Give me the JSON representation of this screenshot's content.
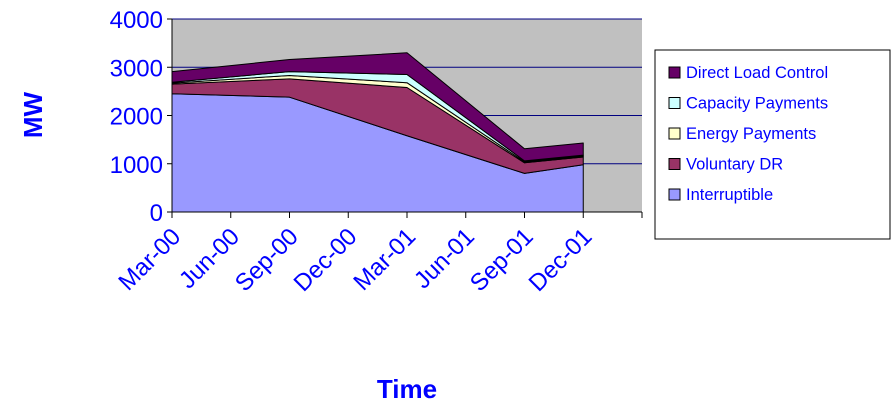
{
  "chart_data": {
    "type": "area",
    "stacked": true,
    "title": "",
    "xlabel": "Time",
    "ylabel": "MW",
    "ylim": [
      0,
      4000
    ],
    "yticks": [
      0,
      1000,
      2000,
      3000,
      4000
    ],
    "categories": [
      "Mar-00",
      "Jun-00",
      "Sep-00",
      "Dec-00",
      "Mar-01",
      "Jun-01",
      "Sep-01",
      "Dec-01"
    ],
    "x": [
      "Mar-00",
      "Sep-00",
      "Mar-01",
      "Sep-01",
      "Dec-01"
    ],
    "series": [
      {
        "name": "Interruptible",
        "color": "#9999ff",
        "values": [
          2450,
          2380,
          1580,
          800,
          980
        ]
      },
      {
        "name": "Voluntary DR",
        "color": "#993366",
        "values": [
          200,
          380,
          1000,
          220,
          160
        ]
      },
      {
        "name": "Energy Payments",
        "color": "#ffffcc",
        "values": [
          20,
          70,
          100,
          20,
          20
        ]
      },
      {
        "name": "Capacity Payments",
        "color": "#ccffff",
        "values": [
          20,
          80,
          170,
          20,
          20
        ]
      },
      {
        "name": "Direct Load Control",
        "color": "#660066",
        "values": [
          220,
          250,
          450,
          250,
          250
        ]
      }
    ],
    "legend_order": [
      "Direct Load Control",
      "Capacity Payments",
      "Energy Payments",
      "Voluntary DR",
      "Interruptible"
    ],
    "legend_position": "right",
    "plot_background": "#c0c0c0",
    "gridlines": "horizontal"
  }
}
